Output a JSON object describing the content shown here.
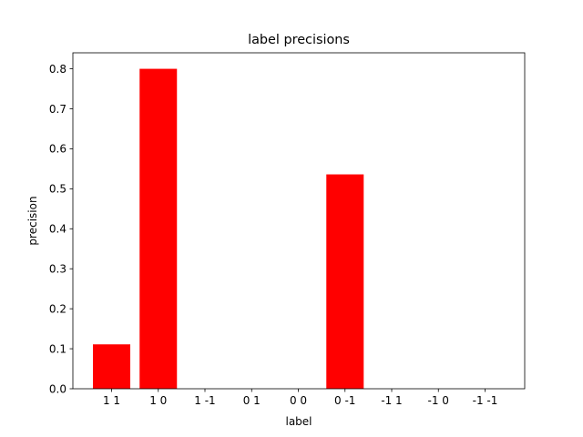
{
  "chart_data": {
    "type": "bar",
    "title": "label precisions",
    "xlabel": "label",
    "ylabel": "precision",
    "categories": [
      "1 1",
      "1 0",
      "1 -1",
      "0 1",
      "0 0",
      "0 -1",
      "-1 1",
      "-1 0",
      "-1 -1"
    ],
    "values": [
      0.111,
      0.8,
      0.0,
      0.0,
      0.0,
      0.536,
      0.0,
      0.0,
      0.0
    ],
    "ylim": [
      0,
      0.84
    ],
    "yticks": [
      0.0,
      0.1,
      0.2,
      0.3,
      0.4,
      0.5,
      0.6,
      0.7,
      0.8
    ],
    "grid": false,
    "bar_color": "#ff0000"
  }
}
